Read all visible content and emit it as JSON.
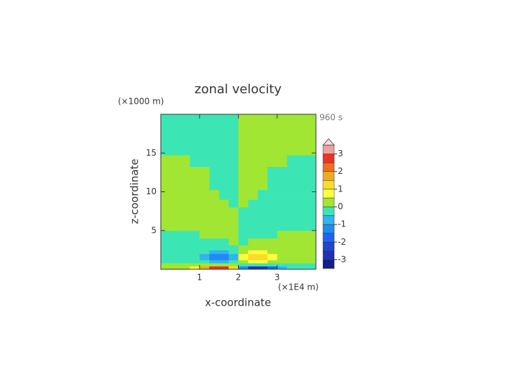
{
  "chart_data": {
    "type": "contour",
    "title": "zonal velocity",
    "x_label": "x-coordinate",
    "y_label": "z-coordinate",
    "x_unit": "(×1E4 m)",
    "y_unit": "(×1000 m)",
    "time_label": "960 s",
    "xlim": [
      0,
      4
    ],
    "ylim": [
      0,
      20
    ],
    "xticks": [
      1,
      2,
      3
    ],
    "yticks": [
      5,
      10,
      15
    ],
    "x": [
      0.125,
      0.375,
      0.625,
      0.875,
      1.125,
      1.375,
      1.625,
      1.875,
      2.125,
      2.375,
      2.625,
      2.875,
      3.125,
      3.375,
      3.625,
      3.875
    ],
    "y": [
      0.2,
      0.6,
      1.0,
      1.4,
      1.8,
      2.2,
      2.75,
      3.5,
      4.5,
      5.5,
      6.5,
      7.5,
      8.5,
      9.5,
      11,
      12.5,
      14,
      15.5,
      17,
      18.5
    ],
    "z": [
      [
        0.2,
        0.2,
        0.4,
        0.8,
        1.8,
        2.6,
        2.6,
        1.2,
        -1.2,
        -2.6,
        -2.6,
        -1.8,
        -0.8,
        -0.4,
        -0.2,
        -0.2
      ],
      [
        0.1,
        0.1,
        0.1,
        0.2,
        0.3,
        0.4,
        0.4,
        0.2,
        -0.2,
        -0.4,
        -0.4,
        -0.3,
        -0.2,
        -0.1,
        -0.1,
        -0.1
      ],
      [
        -0.1,
        -0.1,
        -0.1,
        -0.2,
        -0.4,
        -0.7,
        -0.7,
        -0.3,
        0.3,
        0.7,
        0.7,
        0.4,
        0.2,
        0.1,
        0.1,
        0.1
      ],
      [
        -0.2,
        -0.2,
        -0.2,
        -0.3,
        -0.7,
        -1.3,
        -1.4,
        -0.6,
        0.6,
        1.4,
        1.3,
        0.7,
        0.3,
        0.2,
        0.2,
        0.2
      ],
      [
        -0.2,
        -0.2,
        -0.2,
        -0.3,
        -0.6,
        -1.1,
        -1.2,
        -0.6,
        0.6,
        1.2,
        1.1,
        0.6,
        0.3,
        0.2,
        0.2,
        0.2
      ],
      [
        -0.2,
        -0.2,
        -0.2,
        -0.2,
        -0.3,
        -0.6,
        -0.6,
        -0.3,
        0.3,
        0.6,
        0.6,
        0.3,
        0.2,
        0.2,
        0.2,
        0.2
      ],
      [
        -0.2,
        -0.2,
        -0.2,
        -0.2,
        -0.2,
        -0.2,
        -0.2,
        -0.2,
        0.2,
        0.2,
        0.2,
        0.2,
        0.2,
        0.2,
        0.2,
        0.2
      ],
      [
        -0.2,
        -0.2,
        -0.2,
        -0.2,
        -0.2,
        -0.2,
        -0.1,
        0.1,
        -0.1,
        0.1,
        0.2,
        0.2,
        0.2,
        0.2,
        0.2,
        0.2
      ],
      [
        -0.2,
        -0.2,
        -0.2,
        -0.1,
        0.1,
        0.2,
        0.2,
        0.2,
        -0.2,
        -0.2,
        -0.2,
        -0.1,
        0.1,
        0.2,
        0.2,
        0.2
      ],
      [
        0.2,
        0.2,
        0.2,
        0.2,
        0.2,
        0.2,
        0.2,
        0.2,
        -0.2,
        -0.2,
        -0.2,
        -0.2,
        -0.2,
        -0.2,
        -0.2,
        -0.2
      ],
      [
        0.2,
        0.2,
        0.2,
        0.2,
        0.2,
        0.2,
        0.2,
        0.2,
        -0.2,
        -0.2,
        -0.2,
        -0.2,
        -0.2,
        -0.2,
        -0.2,
        -0.2
      ],
      [
        0.2,
        0.2,
        0.2,
        0.2,
        0.2,
        0.2,
        0.2,
        0.2,
        -0.2,
        -0.2,
        -0.2,
        -0.2,
        -0.2,
        -0.2,
        -0.2,
        -0.2
      ],
      [
        0.2,
        0.2,
        0.2,
        0.2,
        0.2,
        0.2,
        0.1,
        -0.1,
        0.1,
        -0.1,
        -0.2,
        -0.2,
        -0.2,
        -0.2,
        -0.2,
        -0.2
      ],
      [
        0.2,
        0.2,
        0.2,
        0.2,
        0.2,
        0.2,
        -0.1,
        -0.2,
        0.2,
        0.1,
        -0.2,
        -0.2,
        -0.2,
        -0.2,
        -0.2,
        -0.2
      ],
      [
        0.2,
        0.2,
        0.2,
        0.2,
        0.2,
        -0.1,
        -0.2,
        -0.2,
        0.2,
        0.2,
        0.1,
        -0.2,
        -0.2,
        -0.2,
        -0.2,
        -0.2
      ],
      [
        0.2,
        0.2,
        0.2,
        0.2,
        0.1,
        -0.2,
        -0.2,
        -0.2,
        0.2,
        0.2,
        0.2,
        -0.1,
        -0.2,
        -0.2,
        -0.2,
        -0.2
      ],
      [
        0.2,
        0.2,
        0.1,
        -0.1,
        -0.2,
        -0.2,
        -0.2,
        -0.2,
        0.2,
        0.2,
        0.2,
        0.2,
        0.1,
        -0.1,
        -0.2,
        -0.2
      ],
      [
        -0.2,
        -0.2,
        -0.2,
        -0.2,
        -0.2,
        -0.2,
        -0.2,
        -0.2,
        0.2,
        0.2,
        0.2,
        0.2,
        0.2,
        0.2,
        0.2,
        0.2
      ],
      [
        -0.2,
        -0.2,
        -0.2,
        -0.2,
        -0.2,
        -0.2,
        -0.2,
        -0.2,
        0.2,
        0.2,
        0.2,
        0.2,
        0.2,
        0.2,
        0.2,
        0.2
      ],
      [
        -0.2,
        -0.2,
        -0.2,
        -0.2,
        -0.2,
        -0.2,
        -0.2,
        -0.2,
        0.2,
        0.2,
        0.2,
        0.2,
        0.2,
        0.2,
        0.2,
        0.2
      ]
    ],
    "levels": [
      -3.5,
      -3,
      -2.5,
      -2,
      -1.5,
      -1,
      -0.5,
      0,
      0.5,
      1,
      1.5,
      2,
      2.5,
      3,
      3.5
    ],
    "colors": [
      "#141e8c",
      "#1e32b4",
      "#1e46d2",
      "#1e64f0",
      "#1e8cf0",
      "#32b4f0",
      "#3ce6b4",
      "#a0e632",
      "#ffff3c",
      "#fadc28",
      "#f0aa1e",
      "#f06e1e",
      "#f0321e",
      "#f0a0a0"
    ],
    "extend_color": "#fadcdc",
    "colorbar_ticks": [
      -3,
      -2,
      -1,
      0,
      1,
      2,
      3
    ]
  }
}
